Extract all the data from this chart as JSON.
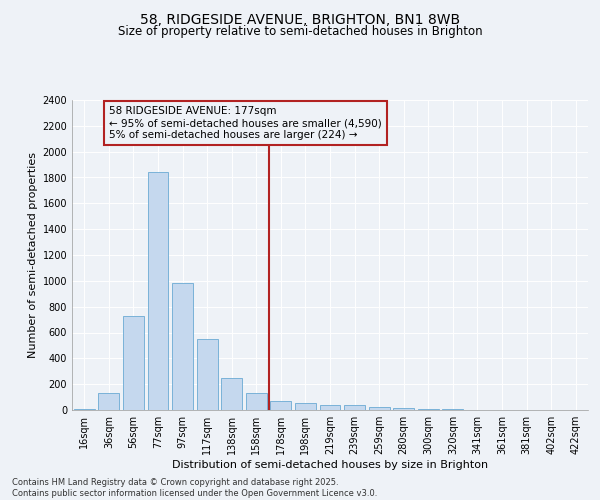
{
  "title1": "58, RIDGESIDE AVENUE, BRIGHTON, BN1 8WB",
  "title2": "Size of property relative to semi-detached houses in Brighton",
  "xlabel": "Distribution of semi-detached houses by size in Brighton",
  "ylabel": "Number of semi-detached properties",
  "categories": [
    "16sqm",
    "36sqm",
    "56sqm",
    "77sqm",
    "97sqm",
    "117sqm",
    "138sqm",
    "158sqm",
    "178sqm",
    "198sqm",
    "219sqm",
    "239sqm",
    "259sqm",
    "280sqm",
    "300sqm",
    "320sqm",
    "341sqm",
    "361sqm",
    "381sqm",
    "402sqm",
    "422sqm"
  ],
  "values": [
    10,
    130,
    730,
    1840,
    980,
    550,
    250,
    130,
    70,
    55,
    40,
    35,
    20,
    15,
    10,
    5,
    3,
    2,
    1,
    1,
    0
  ],
  "bar_color": "#c5d8ee",
  "bar_edge_color": "#6aaad4",
  "vline_color": "#b22222",
  "annotation_line1": "58 RIDGESIDE AVENUE: 177sqm",
  "annotation_line2": "← 95% of semi-detached houses are smaller (4,590)",
  "annotation_line3": "5% of semi-detached houses are larger (224) →",
  "annotation_box_color": "#b22222",
  "ylim": [
    0,
    2400
  ],
  "yticks": [
    0,
    200,
    400,
    600,
    800,
    1000,
    1200,
    1400,
    1600,
    1800,
    2000,
    2200,
    2400
  ],
  "background_color": "#eef2f7",
  "grid_color": "#ffffff",
  "footer": "Contains HM Land Registry data © Crown copyright and database right 2025.\nContains public sector information licensed under the Open Government Licence v3.0.",
  "title_fontsize": 10,
  "subtitle_fontsize": 8.5,
  "axis_label_fontsize": 8,
  "tick_fontsize": 7,
  "annotation_fontsize": 7.5,
  "footer_fontsize": 6
}
